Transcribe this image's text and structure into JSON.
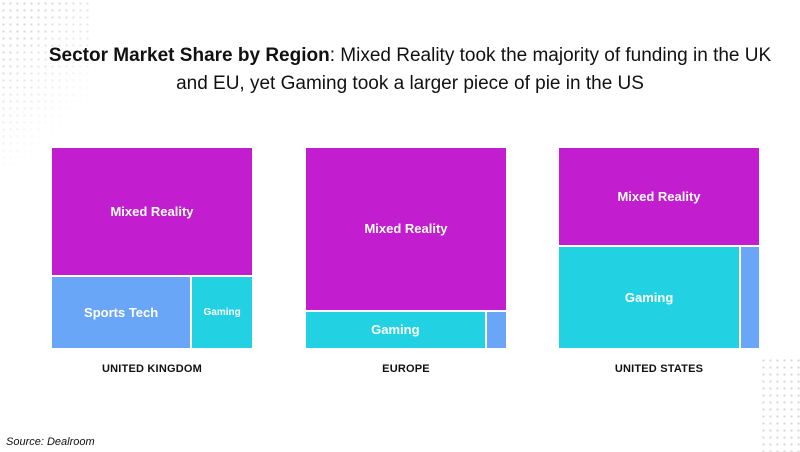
{
  "header": {
    "title_bold": "Sector Market Share by Region",
    "title_rest": ": Mixed Reality took the majority of funding in the UK and EU, yet Gaming took a larger piece of pie in the US"
  },
  "source": "Source: Dealroom",
  "colors": {
    "mixed_reality": "#c21ecf",
    "sports_tech": "#69a6f7",
    "gaming": "#23d2e2",
    "other": "#69a6f7"
  },
  "chart_data": [
    {
      "type": "treemap",
      "region": "UNITED KINGDOM",
      "tiles": [
        {
          "label": "Mixed Reality",
          "color_key": "mixed_reality",
          "share": 0.64
        },
        {
          "label": "Sports Tech",
          "color_key": "sports_tech",
          "share": 0.25
        },
        {
          "label": "Gaming",
          "color_key": "gaming",
          "share": 0.11
        }
      ]
    },
    {
      "type": "treemap",
      "region": "EUROPE",
      "tiles": [
        {
          "label": "Mixed Reality",
          "color_key": "mixed_reality",
          "share": 0.81
        },
        {
          "label": "Gaming",
          "color_key": "gaming",
          "share": 0.17
        },
        {
          "label": "",
          "color_key": "other",
          "share": 0.02
        }
      ]
    },
    {
      "type": "treemap",
      "region": "UNITED STATES",
      "tiles": [
        {
          "label": "Mixed Reality",
          "color_key": "mixed_reality",
          "share": 0.49
        },
        {
          "label": "Gaming",
          "color_key": "gaming",
          "share": 0.46
        },
        {
          "label": "",
          "color_key": "other",
          "share": 0.05
        }
      ]
    }
  ]
}
